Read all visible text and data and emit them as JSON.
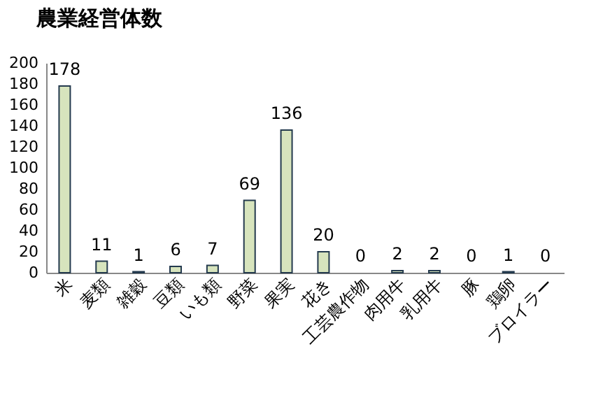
{
  "chart_data": {
    "type": "bar",
    "title": "農業経営体数",
    "categories": [
      "米",
      "麦類",
      "雑穀",
      "豆類",
      "いも類",
      "野菜",
      "果実",
      "花き",
      "工芸農作物",
      "肉用牛",
      "乳用牛",
      "豚",
      "鶏卵",
      "ブロイラー"
    ],
    "values": [
      178,
      11,
      1,
      6,
      7,
      69,
      136,
      20,
      0,
      2,
      2,
      0,
      1,
      0
    ],
    "color": "#d7e4bd",
    "ylim": [
      0,
      200
    ],
    "yticks": [
      0,
      20,
      40,
      60,
      80,
      100,
      120,
      140,
      160,
      180,
      200
    ],
    "grid": false,
    "data_labels": true
  }
}
